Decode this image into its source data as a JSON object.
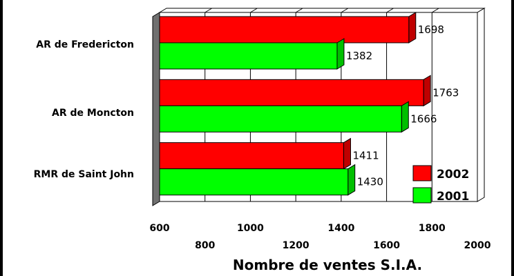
{
  "chart_data": {
    "type": "bar",
    "orientation": "horizontal",
    "categories": [
      "AR de Fredericton",
      "AR de Moncton",
      "RMR de Saint John"
    ],
    "series": [
      {
        "name": "2002",
        "color": "#ff0000",
        "values": [
          1698,
          1763,
          1411
        ]
      },
      {
        "name": "2001",
        "color": "#00ff00",
        "values": [
          1382,
          1666,
          1430
        ]
      }
    ],
    "xlabel": "Nombre de ventes S.I.A.",
    "xlim": [
      600,
      2000
    ],
    "xticks": [
      "600",
      "800",
      "1000",
      "1200",
      "1400",
      "1600",
      "1800",
      "2000"
    ],
    "grid": true,
    "legend_position": "bottom-right"
  }
}
